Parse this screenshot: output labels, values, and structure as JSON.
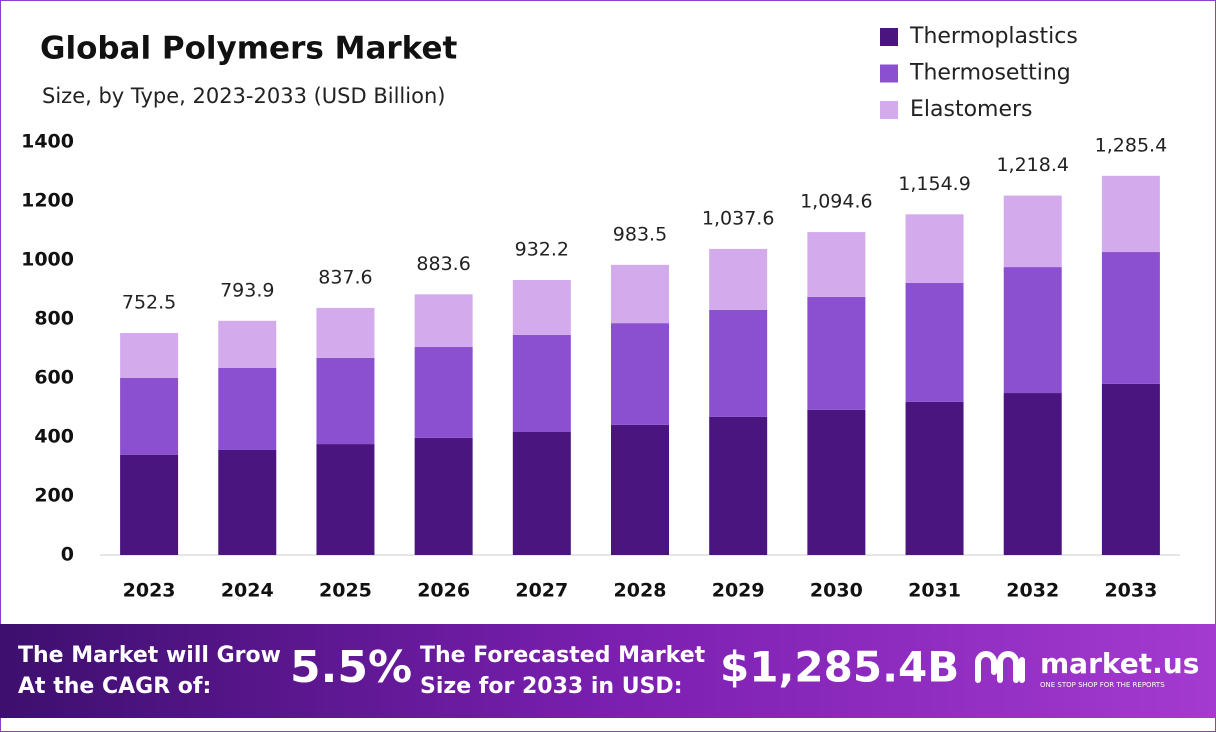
{
  "chart_data": {
    "type": "stacked_bar",
    "title": "Global Polymers Market",
    "subtitle": "Size, by Type, 2023-2033 (USD Billion)",
    "categories": [
      "2023",
      "2024",
      "2025",
      "2026",
      "2027",
      "2028",
      "2029",
      "2030",
      "2031",
      "2032",
      "2033"
    ],
    "series": [
      {
        "name": "Thermoplastics",
        "color": "#4b1580",
        "values": [
          340,
          356,
          376,
          397,
          417,
          441,
          468,
          492,
          519,
          549,
          580
        ]
      },
      {
        "name": "Thermosetting",
        "color": "#8b50d0",
        "values": [
          260,
          278,
          292,
          308,
          329,
          345,
          363,
          383,
          403,
          427,
          447
        ]
      },
      {
        "name": "Elastomers",
        "color": "#d3aaec",
        "values": [
          152.5,
          159.9,
          169.6,
          178.6,
          186.2,
          197.5,
          206.6,
          219.6,
          232.9,
          242.4,
          258.4
        ]
      }
    ],
    "totals": {
      "values": [
        752.5,
        793.9,
        837.6,
        883.6,
        932.2,
        983.5,
        1037.6,
        1094.6,
        1154.9,
        1218.4,
        1285.4
      ],
      "value_labels": [
        "752.5",
        "793.9",
        "837.6",
        "883.6",
        "932.2",
        "983.5",
        "1,037.6",
        "1,094.6",
        "1,154.9",
        "1,218.4",
        "1,285.4"
      ]
    },
    "ylim": [
      0,
      1400
    ],
    "yticks": [
      0,
      200,
      400,
      600,
      800,
      1000,
      1200,
      1400
    ],
    "grid": false,
    "legend": "top-right"
  },
  "footer": {
    "cagr_text": [
      "The Market will Grow",
      "At the CAGR of:"
    ],
    "cagr": "5.5%",
    "forecast_text": [
      "The Forecasted Market",
      "Size for 2033 in USD:"
    ],
    "forecast": "$1,285.4B",
    "brand": "market.us",
    "tagline": "ONE STOP SHOP FOR THE REPORTS"
  }
}
